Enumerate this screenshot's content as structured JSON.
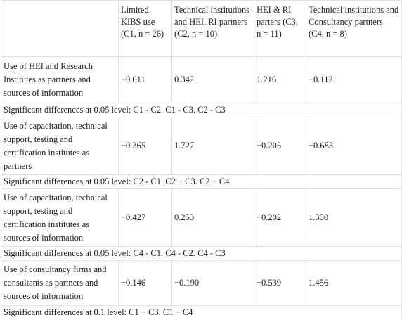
{
  "header": [
    "",
    "Limited KIBS use (C1, n = 26)",
    "Technical institutions and HEI, RI partners (C2, n = 10)",
    "HEI & RI parters (C3, n = 11)",
    "Technical institutions and Consultancy partners (C4, n = 8)"
  ],
  "rows": [
    {
      "label": "Use of HEI and Research Institutes as partners and sources of information",
      "values": [
        "−0.611",
        "0.342",
        "1.216",
        "−0.112"
      ],
      "note": "Significant differences at 0.05 level: C1 - C2. C1 - C3. C2 - C3"
    },
    {
      "label": "Use of capacitation, technical support, testing and certification institutes as partners",
      "values": [
        "−0.365",
        "1.727",
        "−0.205",
        "−0.683"
      ],
      "note": "Significant differences at 0.05 level: C2 - C1. C2 − C3. C2 − C4"
    },
    {
      "label": "Use of capacitation, technical support, testing and certification institutes as sources of information",
      "values": [
        "−0.427",
        "0.253",
        "−0.202",
        "1.350"
      ],
      "note": "Significant differences at 0.05 level: C4 - C1. C4 - C2. C4 - C3"
    },
    {
      "label": "Use of consultancy firms and consultants as partners and sources of information",
      "values": [
        "−0.146",
        "−0.190",
        "−0.539",
        "1.456"
      ],
      "note": "Significant differences at 0.1 level: C1 − C3. C1 − C4"
    }
  ]
}
